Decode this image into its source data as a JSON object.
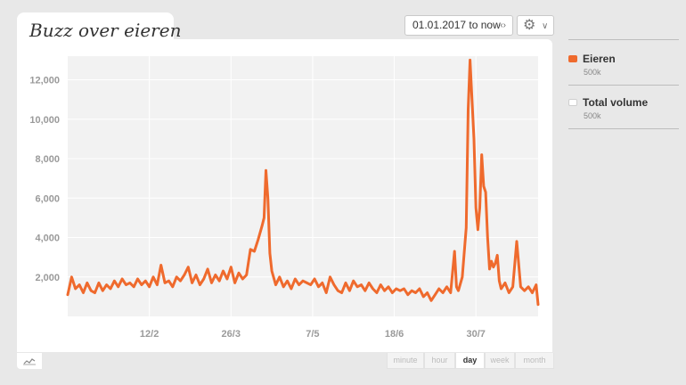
{
  "title": "Buzz over eieren",
  "date_range": "01.01.2017 to now",
  "granularity": [
    {
      "label": "minute",
      "active": false
    },
    {
      "label": "hour",
      "active": false
    },
    {
      "label": "day",
      "active": true
    },
    {
      "label": "week",
      "active": false
    },
    {
      "label": "month",
      "active": false
    }
  ],
  "legend": [
    {
      "name": "Eieren",
      "volume": "500k",
      "color": "#ef6a2d"
    },
    {
      "name": "Total volume",
      "volume": "500k",
      "color": "#ffffff"
    }
  ],
  "chart_data": {
    "type": "line",
    "title": "Buzz over eieren",
    "xlabel": "",
    "ylabel": "",
    "ylim": [
      0,
      13200
    ],
    "y_ticks": [
      2000,
      4000,
      6000,
      8000,
      10000,
      12000
    ],
    "y_tick_labels": [
      "2,000",
      "4,000",
      "6,000",
      "8,000",
      "10,000",
      "12,000"
    ],
    "x_tick_labels": [
      "12/2",
      "26/3",
      "7/5",
      "18/6",
      "30/7"
    ],
    "x_ticks": [
      "2017-02-12",
      "2017-03-26",
      "2017-05-07",
      "2017-06-18",
      "2017-07-30"
    ],
    "x_range": [
      "2017-01-01",
      "2017-08-31"
    ],
    "grid": true,
    "series": [
      {
        "name": "Eieren",
        "color": "#ef6a2d",
        "points": [
          [
            "2017-01-01",
            1100
          ],
          [
            "2017-01-03",
            2000
          ],
          [
            "2017-01-05",
            1400
          ],
          [
            "2017-01-07",
            1600
          ],
          [
            "2017-01-09",
            1200
          ],
          [
            "2017-01-11",
            1700
          ],
          [
            "2017-01-13",
            1300
          ],
          [
            "2017-01-15",
            1200
          ],
          [
            "2017-01-17",
            1700
          ],
          [
            "2017-01-19",
            1300
          ],
          [
            "2017-01-21",
            1600
          ],
          [
            "2017-01-23",
            1400
          ],
          [
            "2017-01-25",
            1800
          ],
          [
            "2017-01-27",
            1500
          ],
          [
            "2017-01-29",
            1900
          ],
          [
            "2017-01-31",
            1600
          ],
          [
            "2017-02-02",
            1700
          ],
          [
            "2017-02-04",
            1500
          ],
          [
            "2017-02-06",
            1900
          ],
          [
            "2017-02-08",
            1600
          ],
          [
            "2017-02-10",
            1800
          ],
          [
            "2017-02-12",
            1500
          ],
          [
            "2017-02-14",
            2000
          ],
          [
            "2017-02-16",
            1600
          ],
          [
            "2017-02-18",
            2600
          ],
          [
            "2017-02-20",
            1700
          ],
          [
            "2017-02-22",
            1800
          ],
          [
            "2017-02-24",
            1500
          ],
          [
            "2017-02-26",
            2000
          ],
          [
            "2017-02-28",
            1800
          ],
          [
            "2017-03-02",
            2100
          ],
          [
            "2017-03-04",
            2500
          ],
          [
            "2017-03-06",
            1700
          ],
          [
            "2017-03-08",
            2100
          ],
          [
            "2017-03-10",
            1600
          ],
          [
            "2017-03-12",
            1900
          ],
          [
            "2017-03-14",
            2400
          ],
          [
            "2017-03-16",
            1700
          ],
          [
            "2017-03-18",
            2100
          ],
          [
            "2017-03-20",
            1800
          ],
          [
            "2017-03-22",
            2300
          ],
          [
            "2017-03-24",
            1900
          ],
          [
            "2017-03-26",
            2500
          ],
          [
            "2017-03-28",
            1700
          ],
          [
            "2017-03-30",
            2200
          ],
          [
            "2017-04-01",
            1900
          ],
          [
            "2017-04-03",
            2100
          ],
          [
            "2017-04-05",
            3400
          ],
          [
            "2017-04-07",
            3300
          ],
          [
            "2017-04-09",
            3900
          ],
          [
            "2017-04-11",
            4600
          ],
          [
            "2017-04-12",
            5000
          ],
          [
            "2017-04-13",
            7400
          ],
          [
            "2017-04-14",
            6000
          ],
          [
            "2017-04-15",
            3200
          ],
          [
            "2017-04-16",
            2300
          ],
          [
            "2017-04-18",
            1600
          ],
          [
            "2017-04-20",
            2000
          ],
          [
            "2017-04-22",
            1500
          ],
          [
            "2017-04-24",
            1800
          ],
          [
            "2017-04-26",
            1400
          ],
          [
            "2017-04-28",
            1900
          ],
          [
            "2017-04-30",
            1600
          ],
          [
            "2017-05-02",
            1800
          ],
          [
            "2017-05-04",
            1700
          ],
          [
            "2017-05-06",
            1600
          ],
          [
            "2017-05-08",
            1900
          ],
          [
            "2017-05-10",
            1500
          ],
          [
            "2017-05-12",
            1700
          ],
          [
            "2017-05-14",
            1200
          ],
          [
            "2017-05-16",
            2000
          ],
          [
            "2017-05-18",
            1600
          ],
          [
            "2017-05-20",
            1300
          ],
          [
            "2017-05-22",
            1200
          ],
          [
            "2017-05-24",
            1700
          ],
          [
            "2017-05-26",
            1300
          ],
          [
            "2017-05-28",
            1800
          ],
          [
            "2017-05-30",
            1500
          ],
          [
            "2017-06-01",
            1600
          ],
          [
            "2017-06-03",
            1300
          ],
          [
            "2017-06-05",
            1700
          ],
          [
            "2017-06-07",
            1400
          ],
          [
            "2017-06-09",
            1200
          ],
          [
            "2017-06-11",
            1600
          ],
          [
            "2017-06-13",
            1300
          ],
          [
            "2017-06-15",
            1500
          ],
          [
            "2017-06-17",
            1200
          ],
          [
            "2017-06-19",
            1400
          ],
          [
            "2017-06-21",
            1300
          ],
          [
            "2017-06-23",
            1400
          ],
          [
            "2017-06-25",
            1100
          ],
          [
            "2017-06-27",
            1300
          ],
          [
            "2017-06-29",
            1200
          ],
          [
            "2017-07-01",
            1400
          ],
          [
            "2017-07-03",
            1000
          ],
          [
            "2017-07-05",
            1200
          ],
          [
            "2017-07-07",
            800
          ],
          [
            "2017-07-09",
            1100
          ],
          [
            "2017-07-11",
            1400
          ],
          [
            "2017-07-13",
            1200
          ],
          [
            "2017-07-15",
            1500
          ],
          [
            "2017-07-17",
            1200
          ],
          [
            "2017-07-19",
            3300
          ],
          [
            "2017-07-20",
            1500
          ],
          [
            "2017-07-21",
            1300
          ],
          [
            "2017-07-23",
            2000
          ],
          [
            "2017-07-25",
            4500
          ],
          [
            "2017-07-26",
            10500
          ],
          [
            "2017-07-27",
            13000
          ],
          [
            "2017-07-28",
            11000
          ],
          [
            "2017-07-29",
            9000
          ],
          [
            "2017-07-30",
            5500
          ],
          [
            "2017-07-31",
            4400
          ],
          [
            "2017-08-01",
            5500
          ],
          [
            "2017-08-02",
            8200
          ],
          [
            "2017-08-03",
            6600
          ],
          [
            "2017-08-04",
            6300
          ],
          [
            "2017-08-05",
            4000
          ],
          [
            "2017-08-06",
            2400
          ],
          [
            "2017-08-07",
            2800
          ],
          [
            "2017-08-08",
            2500
          ],
          [
            "2017-08-09",
            2700
          ],
          [
            "2017-08-10",
            3100
          ],
          [
            "2017-08-11",
            1800
          ],
          [
            "2017-08-12",
            1400
          ],
          [
            "2017-08-14",
            1700
          ],
          [
            "2017-08-16",
            1200
          ],
          [
            "2017-08-18",
            1500
          ],
          [
            "2017-08-20",
            3800
          ],
          [
            "2017-08-22",
            1500
          ],
          [
            "2017-08-24",
            1300
          ],
          [
            "2017-08-26",
            1500
          ],
          [
            "2017-08-28",
            1200
          ],
          [
            "2017-08-30",
            1600
          ],
          [
            "2017-08-31",
            600
          ]
        ]
      }
    ]
  }
}
